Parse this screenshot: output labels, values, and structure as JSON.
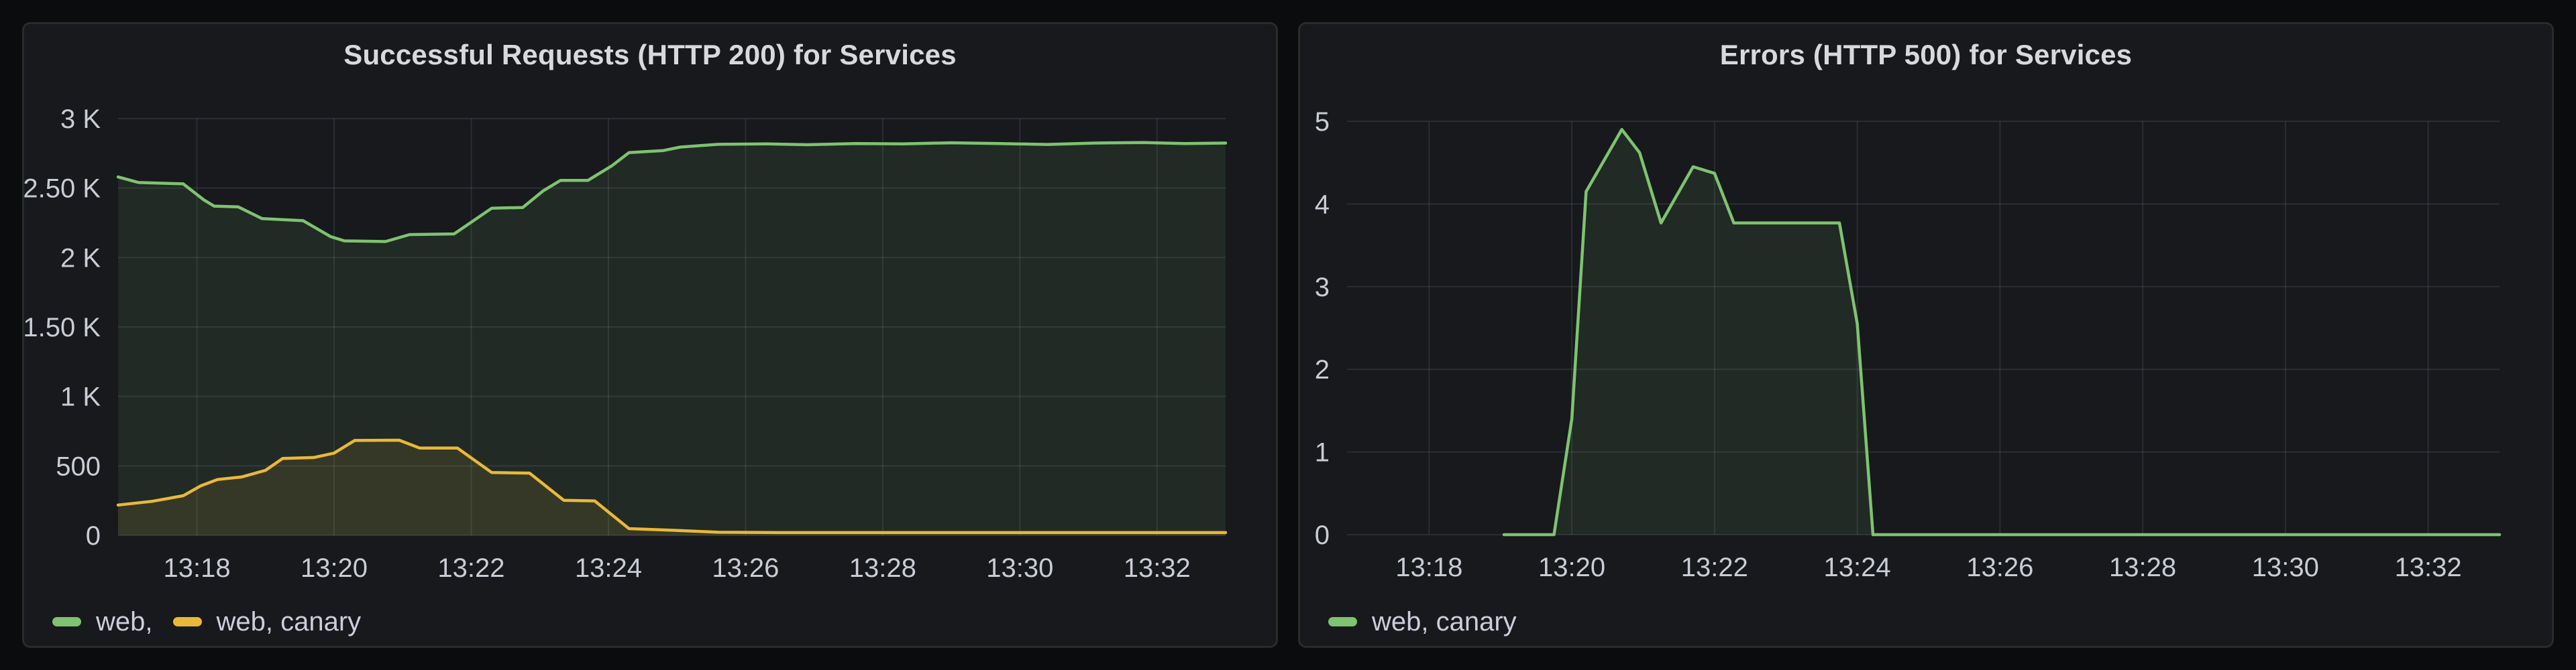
{
  "page": {
    "background_color": "#0b0c0e",
    "panel_background_color": "#17191d",
    "panel_border_color": "#272d2a",
    "grid_color": "rgba(204,212,228,0.11)",
    "tick_text_color": "#c9ccd4",
    "title_text_color": "#d8d9da"
  },
  "chart_data": [
    {
      "type": "area",
      "title": "Successful Requests (HTTP 200) for Services",
      "xlabel": "",
      "ylabel": "",
      "x_units_note": "x values are minutes after 13:00, local time axis ticks below",
      "xlim": [
        16.85,
        33.0
      ],
      "ylim": [
        0,
        3000
      ],
      "grid": true,
      "legend_position": "bottom-left",
      "x_ticks": [
        {
          "v": 18,
          "label": "13:18"
        },
        {
          "v": 20,
          "label": "13:20"
        },
        {
          "v": 22,
          "label": "13:22"
        },
        {
          "v": 24,
          "label": "13:24"
        },
        {
          "v": 26,
          "label": "13:26"
        },
        {
          "v": 28,
          "label": "13:28"
        },
        {
          "v": 30,
          "label": "13:30"
        },
        {
          "v": 32,
          "label": "13:32"
        }
      ],
      "y_ticks": [
        {
          "v": 0,
          "label": "0"
        },
        {
          "v": 500,
          "label": "500"
        },
        {
          "v": 1000,
          "label": "1 K"
        },
        {
          "v": 1500,
          "label": "1.50 K"
        },
        {
          "v": 2000,
          "label": "2 K"
        },
        {
          "v": 2500,
          "label": "2.50 K"
        },
        {
          "v": 3000,
          "label": "3 K"
        }
      ],
      "series": [
        {
          "name": "web,",
          "color": "#7ec36f",
          "fill": "rgba(126,195,111,0.10)",
          "points": [
            [
              16.85,
              2580
            ],
            [
              17.15,
              2540
            ],
            [
              17.8,
              2530
            ],
            [
              18.1,
              2415
            ],
            [
              18.25,
              2370
            ],
            [
              18.6,
              2365
            ],
            [
              18.95,
              2280
            ],
            [
              19.55,
              2265
            ],
            [
              19.95,
              2150
            ],
            [
              20.15,
              2120
            ],
            [
              20.75,
              2115
            ],
            [
              21.1,
              2165
            ],
            [
              21.75,
              2170
            ],
            [
              22.3,
              2355
            ],
            [
              22.75,
              2360
            ],
            [
              23.05,
              2480
            ],
            [
              23.3,
              2555
            ],
            [
              23.7,
              2555
            ],
            [
              24.05,
              2660
            ],
            [
              24.3,
              2755
            ],
            [
              24.8,
              2770
            ],
            [
              25.05,
              2795
            ],
            [
              25.6,
              2815
            ],
            [
              26.3,
              2818
            ],
            [
              26.9,
              2812
            ],
            [
              27.6,
              2820
            ],
            [
              28.3,
              2818
            ],
            [
              29.0,
              2826
            ],
            [
              29.7,
              2820
            ],
            [
              30.4,
              2814
            ],
            [
              31.1,
              2824
            ],
            [
              31.8,
              2828
            ],
            [
              32.4,
              2820
            ],
            [
              33.0,
              2824
            ]
          ]
        },
        {
          "name": "web, canary",
          "color": "#eab839",
          "fill": "rgba(234,184,57,0.10)",
          "points": [
            [
              16.85,
              218
            ],
            [
              17.35,
              245
            ],
            [
              17.8,
              285
            ],
            [
              18.05,
              355
            ],
            [
              18.3,
              402
            ],
            [
              18.65,
              420
            ],
            [
              19.0,
              468
            ],
            [
              19.25,
              553
            ],
            [
              19.7,
              560
            ],
            [
              20.0,
              592
            ],
            [
              20.3,
              683
            ],
            [
              20.95,
              685
            ],
            [
              21.25,
              628
            ],
            [
              21.8,
              628
            ],
            [
              22.3,
              452
            ],
            [
              22.85,
              448
            ],
            [
              23.35,
              252
            ],
            [
              23.8,
              248
            ],
            [
              24.3,
              48
            ],
            [
              24.95,
              36
            ],
            [
              25.6,
              22
            ],
            [
              26.5,
              20
            ],
            [
              33.0,
              20
            ]
          ]
        }
      ]
    },
    {
      "type": "area",
      "title": "Errors (HTTP 500) for Services",
      "xlabel": "",
      "ylabel": "",
      "x_units_note": "x values are minutes after 13:00; series has no data before 13:19",
      "xlim": [
        16.85,
        33.0
      ],
      "ylim": [
        0,
        5
      ],
      "grid": true,
      "legend_position": "bottom-left",
      "x_ticks": [
        {
          "v": 18,
          "label": "13:18"
        },
        {
          "v": 20,
          "label": "13:20"
        },
        {
          "v": 22,
          "label": "13:22"
        },
        {
          "v": 24,
          "label": "13:24"
        },
        {
          "v": 26,
          "label": "13:26"
        },
        {
          "v": 28,
          "label": "13:28"
        },
        {
          "v": 30,
          "label": "13:30"
        },
        {
          "v": 32,
          "label": "13:32"
        }
      ],
      "y_ticks": [
        {
          "v": 0,
          "label": "0"
        },
        {
          "v": 1,
          "label": "1"
        },
        {
          "v": 2,
          "label": "2"
        },
        {
          "v": 3,
          "label": "3"
        },
        {
          "v": 4,
          "label": "4"
        },
        {
          "v": 5,
          "label": "5"
        }
      ],
      "series": [
        {
          "name": "web, canary",
          "color": "#7ec36f",
          "fill": "rgba(126,195,111,0.10)",
          "points": [
            [
              19.05,
              0
            ],
            [
              19.75,
              0
            ],
            [
              20.0,
              1.4
            ],
            [
              20.2,
              4.15
            ],
            [
              20.7,
              4.9
            ],
            [
              20.95,
              4.62
            ],
            [
              21.25,
              3.77
            ],
            [
              21.7,
              4.45
            ],
            [
              22.0,
              4.37
            ],
            [
              22.27,
              3.77
            ],
            [
              23.75,
              3.77
            ],
            [
              24.0,
              2.55
            ],
            [
              24.22,
              0
            ],
            [
              33.0,
              0
            ]
          ]
        }
      ]
    }
  ]
}
